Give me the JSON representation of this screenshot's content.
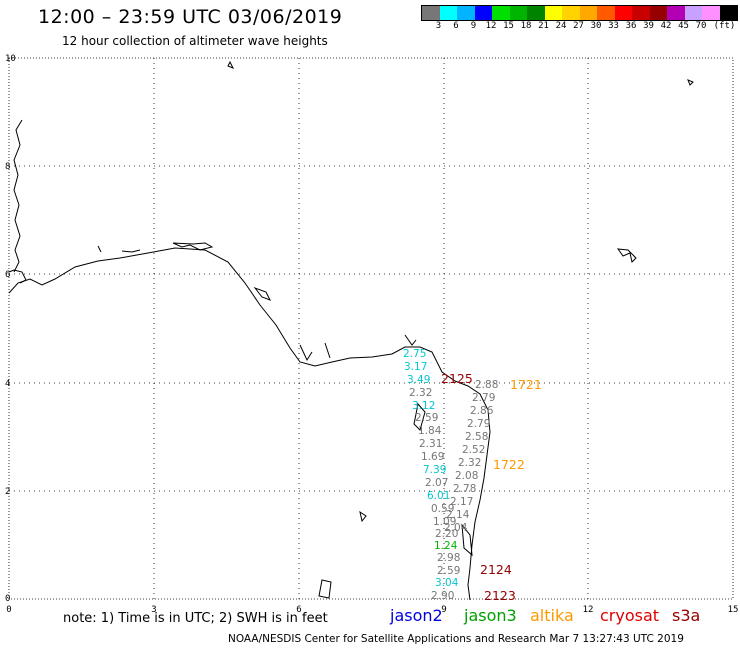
{
  "header": {
    "title": "12:00 – 23:59 UTC 03/06/2019",
    "subtitle": "12 hour collection of altimeter wave heights"
  },
  "scale": {
    "unit": "(ft)",
    "ticks": [
      "3",
      "6",
      "9",
      "12",
      "15",
      "18",
      "21",
      "24",
      "27",
      "30",
      "33",
      "36",
      "39",
      "42",
      "45",
      "70"
    ],
    "colors": [
      "#777777",
      "#00ffff",
      "#00b4ff",
      "#0000ff",
      "#00e000",
      "#00b400",
      "#008400",
      "#ffff00",
      "#ffd200",
      "#ffa800",
      "#ff5a00",
      "#ff0000",
      "#c80000",
      "#960000",
      "#b400b4",
      "#c8a0ff",
      "#ff90ff",
      "#000000"
    ]
  },
  "map": {
    "x_ticks": [
      "0",
      "3",
      "6",
      "9",
      "12",
      "15"
    ],
    "y_ticks": [
      "0",
      "2",
      "4",
      "6",
      "8",
      "10"
    ]
  },
  "measurements": [
    {
      "v": "2.75",
      "c": "#00c8d0"
    },
    {
      "v": "3.17",
      "c": "#00c8d0"
    },
    {
      "v": "3.49",
      "c": "#00c8d0"
    },
    {
      "v": "2.32",
      "c": "#777777"
    },
    {
      "v": "3.12",
      "c": "#00c8d0"
    },
    {
      "v": "2.59",
      "c": "#777777"
    },
    {
      "v": "1.84",
      "c": "#777777"
    },
    {
      "v": "2.31",
      "c": "#777777"
    },
    {
      "v": "1.69",
      "c": "#777777"
    },
    {
      "v": "7.39",
      "c": "#00c8d0"
    },
    {
      "v": "2.07",
      "c": "#777777"
    },
    {
      "v": "6.01",
      "c": "#00c8d0"
    },
    {
      "v": "0.59",
      "c": "#777777"
    },
    {
      "v": "1.09",
      "c": "#777777"
    },
    {
      "v": "2.20",
      "c": "#777777"
    },
    {
      "v": "1.24",
      "c": "#00b400"
    },
    {
      "v": "2.98",
      "c": "#777777"
    },
    {
      "v": "2.59",
      "c": "#777777"
    },
    {
      "v": "3.04",
      "c": "#00c8d0"
    },
    {
      "v": "2.90",
      "c": "#777777"
    },
    {
      "v": "2.88",
      "c": "#777777"
    },
    {
      "v": "2.79",
      "c": "#777777"
    },
    {
      "v": "2.86",
      "c": "#777777"
    },
    {
      "v": "2.79",
      "c": "#777777"
    },
    {
      "v": "2.58",
      "c": "#777777"
    },
    {
      "v": "2.52",
      "c": "#777777"
    },
    {
      "v": "2.32",
      "c": "#777777"
    },
    {
      "v": "2.08",
      "c": "#777777"
    },
    {
      "v": "2.78",
      "c": "#777777"
    },
    {
      "v": "2.17",
      "c": "#777777"
    },
    {
      "v": "2.14",
      "c": "#777777"
    },
    {
      "v": "2.04",
      "c": "#777777"
    }
  ],
  "passes": [
    {
      "id": "2125",
      "c": "#960000"
    },
    {
      "id": "1721",
      "c": "#ff9900"
    },
    {
      "id": "1722",
      "c": "#ff9900"
    },
    {
      "id": "2124",
      "c": "#960000"
    },
    {
      "id": "2123",
      "c": "#960000"
    }
  ],
  "footer": {
    "note": "note:  1) Time is in UTC;  2) SWH is in feet",
    "satellites": [
      {
        "name": "jason2",
        "color": "#0000e0"
      },
      {
        "name": "jason3",
        "color": "#00a000"
      },
      {
        "name": "altika",
        "color": "#ff9900"
      },
      {
        "name": "cryosat",
        "color": "#e00000"
      },
      {
        "name": "s3a",
        "color": "#960000"
      }
    ],
    "credit": "NOAA/NESDIS Center for Satellite Applications and Research    Mar  7 13:27:43 UTC 2019"
  }
}
